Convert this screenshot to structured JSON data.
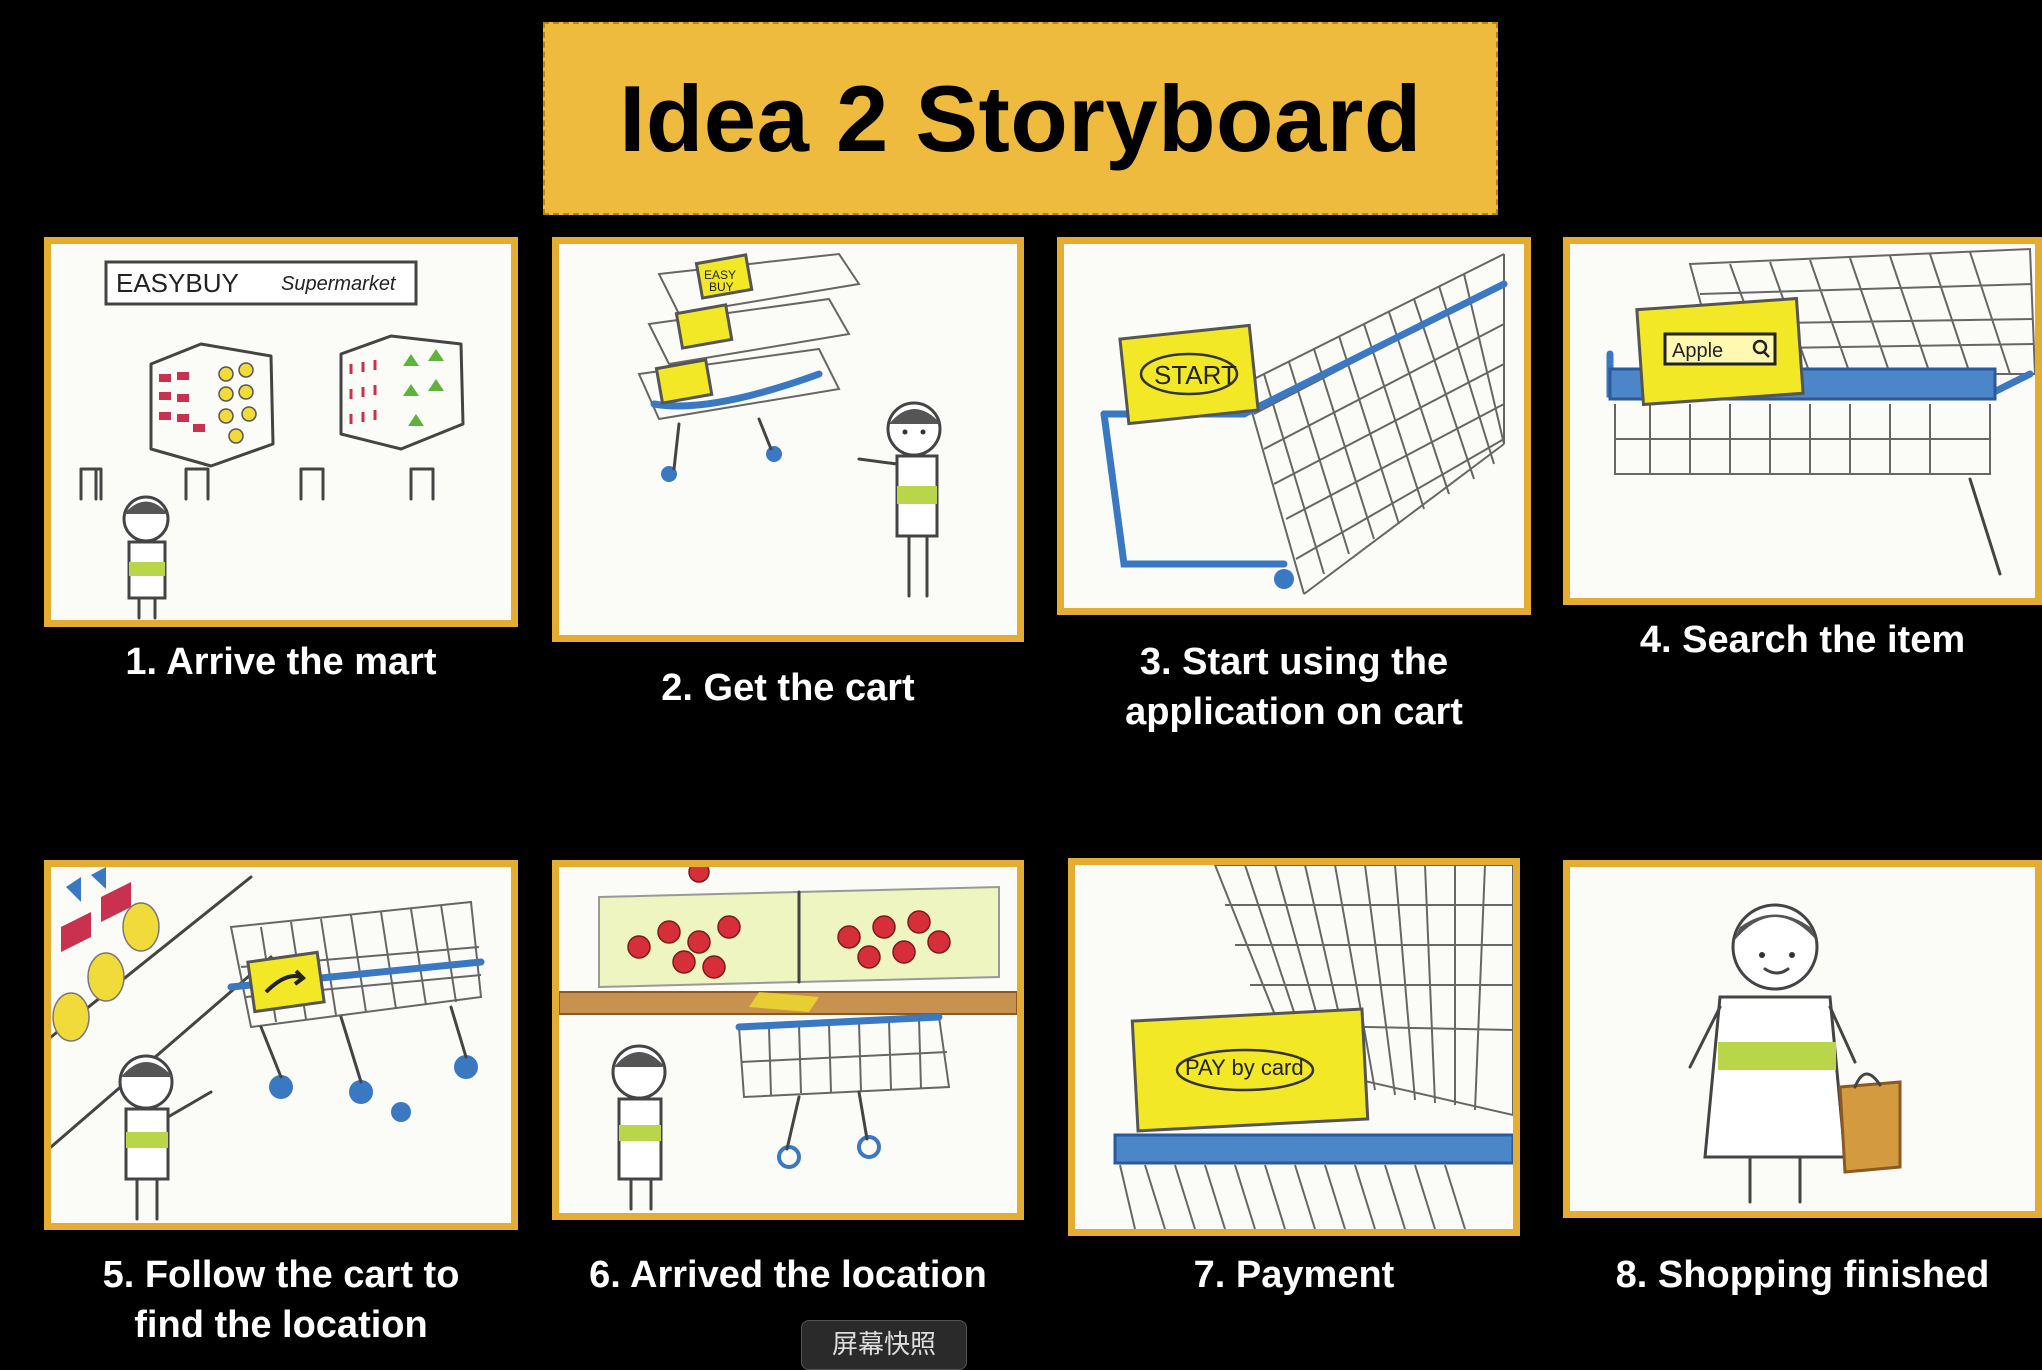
{
  "title": "Idea 2 Storyboard",
  "panels": [
    {
      "caption": "1. Arrive the mart",
      "sign_brand": "EASYBUY",
      "sign_sub": "Supermarket"
    },
    {
      "caption": "2. Get the cart",
      "cart_label_1": "EASY",
      "cart_label_2": "BUY"
    },
    {
      "caption_line1": "3. Start using the",
      "caption_line2": "application on cart",
      "screen_text": "START"
    },
    {
      "caption": "4. Search the item",
      "search_text": "Apple"
    },
    {
      "caption_line1": "5. Follow the cart to",
      "caption_line2": "find the location"
    },
    {
      "caption": "6. Arrived the location"
    },
    {
      "caption": "7. Payment",
      "screen_text": "PAY by card"
    },
    {
      "caption": "8. Shopping finished"
    }
  ],
  "snapshot_button": "屏幕快照",
  "colors": {
    "background": "#000000",
    "title_bg": "#efbb3f",
    "frame": "#e5ac32",
    "screen": "#f3e826",
    "cart_blue": "#3a78c2"
  }
}
